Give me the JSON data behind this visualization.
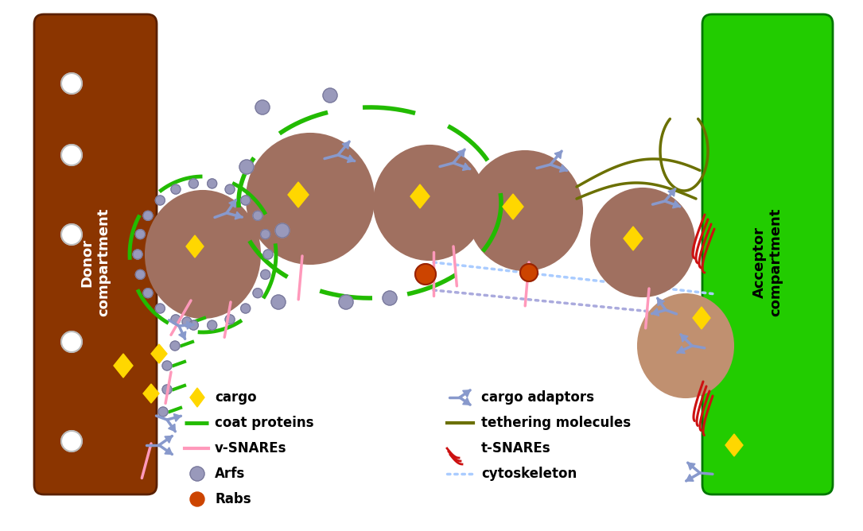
{
  "bg_color": "#ffffff",
  "donor_color": "#8B3500",
  "acceptor_color": "#22CC00",
  "vesicle_color": "#A07060",
  "vesicle_edge": "#8B5E3C",
  "cargo_color": "#FFD700",
  "rab_color": "#CC4400",
  "arf_color": "#9999BB",
  "coat_color": "#22BB00",
  "vsnare_color": "#FF99BB",
  "tsnare_color": "#CC1111",
  "tether_color": "#6B7000",
  "adaptor_color": "#8899CC",
  "cyto_color_1": "#AAAADD",
  "cyto_color_2": "#AACCFF",
  "white_dot": "#ffffff",
  "legend_labels": [
    "cargo",
    "coat proteins",
    "v-SNAREs",
    "Arfs",
    "Rabs",
    "cargo adaptors",
    "tethering molecules",
    "t-SNAREs",
    "cytoskeleton"
  ]
}
